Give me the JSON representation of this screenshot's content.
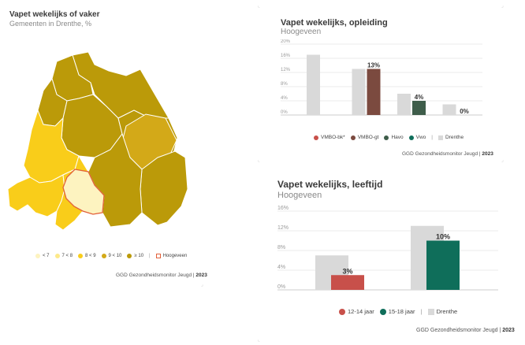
{
  "map": {
    "title": "Vapet wekelijks of vaker",
    "subtitle": "Gemeenten in Drenthe, %",
    "legend": [
      {
        "label": "< 7",
        "color": "#fdf3c0"
      },
      {
        "label": "7 < 8",
        "color": "#fde98a"
      },
      {
        "label": "8 < 9",
        "color": "#f9cd1a"
      },
      {
        "label": "9 < 10",
        "color": "#d3a918"
      },
      {
        "label": "≥ 10",
        "color": "#bb9a09"
      }
    ],
    "highlight_label": "Hoogeveen",
    "highlight_color": "#e2613a",
    "source": "GGD Gezondheidsmonitor Jeugd",
    "year": "2023"
  },
  "chart1": {
    "title": "Vapet wekelijks, opleiding",
    "subtitle": "Hoogeveen",
    "source": "GGD Gezondheidsmonitor Jeugd",
    "year": "2023",
    "legend_region": "Drenthe",
    "chart_data": {
      "type": "bar",
      "categories": [
        "VMBO-bk*",
        "VMBO-gt",
        "Havo",
        "Vwo"
      ],
      "series": [
        {
          "name": "Drenthe",
          "color": "#d9d9d9",
          "values": [
            17,
            13,
            6,
            3
          ]
        },
        {
          "name": "Hoogeveen",
          "colors": [
            "#c8504a",
            "#7b4a3f",
            "#3e5d4a",
            "#0f6e5a"
          ],
          "values": [
            null,
            13,
            4,
            0
          ]
        }
      ],
      "value_labels": [
        "",
        "13%",
        "4%",
        "0%"
      ],
      "yticks": [
        "0%",
        "4%",
        "8%",
        "12%",
        "16%",
        "20%"
      ],
      "ylim": [
        0,
        20
      ]
    }
  },
  "chart2": {
    "title": "Vapet wekelijks, leeftijd",
    "subtitle": "Hoogeveen",
    "source": "GGD Gezondheidsmonitor Jeugd",
    "year": "2023",
    "legend_region": "Drenthe",
    "chart_data": {
      "type": "bar",
      "categories": [
        "12-14 jaar",
        "15-18 jaar"
      ],
      "series": [
        {
          "name": "Drenthe",
          "color": "#d9d9d9",
          "values": [
            7,
            13
          ]
        },
        {
          "name": "Hoogeveen",
          "colors": [
            "#c8504a",
            "#0f6e5a"
          ],
          "values": [
            3,
            10
          ]
        }
      ],
      "value_labels": [
        "3%",
        "10%"
      ],
      "yticks": [
        "0%",
        "4%",
        "8%",
        "12%",
        "16%"
      ],
      "ylim": [
        0,
        16
      ]
    }
  }
}
